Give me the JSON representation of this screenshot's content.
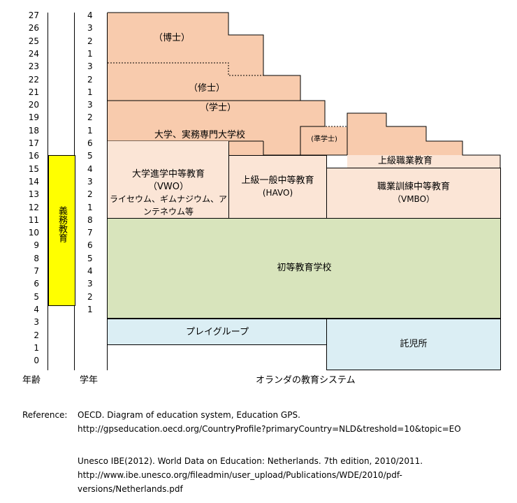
{
  "ages": [
    "27",
    "26",
    "25",
    "24",
    "23",
    "22",
    "21",
    "20",
    "19",
    "18",
    "17",
    "16",
    "15",
    "14",
    "13",
    "12",
    "11",
    "10",
    "9",
    "8",
    "7",
    "6",
    "5",
    "4",
    "3",
    "2",
    "1",
    "0"
  ],
  "grades": [
    "4",
    "3",
    "2",
    "1",
    "3",
    "2",
    "1",
    "3",
    "2",
    "1",
    "6",
    "5",
    "4",
    "3",
    "2",
    "1",
    "8",
    "7",
    "6",
    "5",
    "4",
    "3",
    "2",
    "1"
  ],
  "compulsory_label": "義務教育",
  "axis": {
    "age_label": "年齢",
    "grade_label": "学年",
    "caption": "オランダの教育システム"
  },
  "blocks": {
    "doctor": "（博士）",
    "master": "（修士）",
    "bachelor": "（学士）",
    "university": "大学、実務専門大学校",
    "associate": "(準学士)",
    "upper_vocational": "上級職業教育",
    "vwo_line1": "大学進学中等教育",
    "vwo_line2": "（VWO）",
    "vwo_line3": "ライセウム、ギムナジウム、ア",
    "vwo_line4": "ンテネウム等",
    "havo_line1": "上級一般中等教育",
    "havo_line2": "(HAVO)",
    "vmbo_line1": "職業訓練中等教育",
    "vmbo_line2": "（VMBO）",
    "primary": "初等教育学校",
    "playgroup": "プレイグループ",
    "nursery": "託児所"
  },
  "references": {
    "label": "Reference:",
    "ref1_line1": "OECD. Diagram of education system, Education GPS.",
    "ref1_line2": "http://gpseducation.oecd.org/CountryProfile?primaryCountry=NLD&treshold=10&topic=EO",
    "ref2_line1": "Unesco IBE(2012). World Data on Education: Netherlands. 7th edition, 2010/2011.",
    "ref2_line2": "http://www.ibe.unesco.org/fileadmin/user_upload/Publications/WDE/2010/pdf-",
    "ref2_line3": "versions/Netherlands.pdf"
  },
  "colors": {
    "higher": "#f8cbad",
    "secondary": "#fbe5d6",
    "primary": "#d8e4bc",
    "early": "#dbeef4",
    "compulsory": "#ffff00"
  }
}
